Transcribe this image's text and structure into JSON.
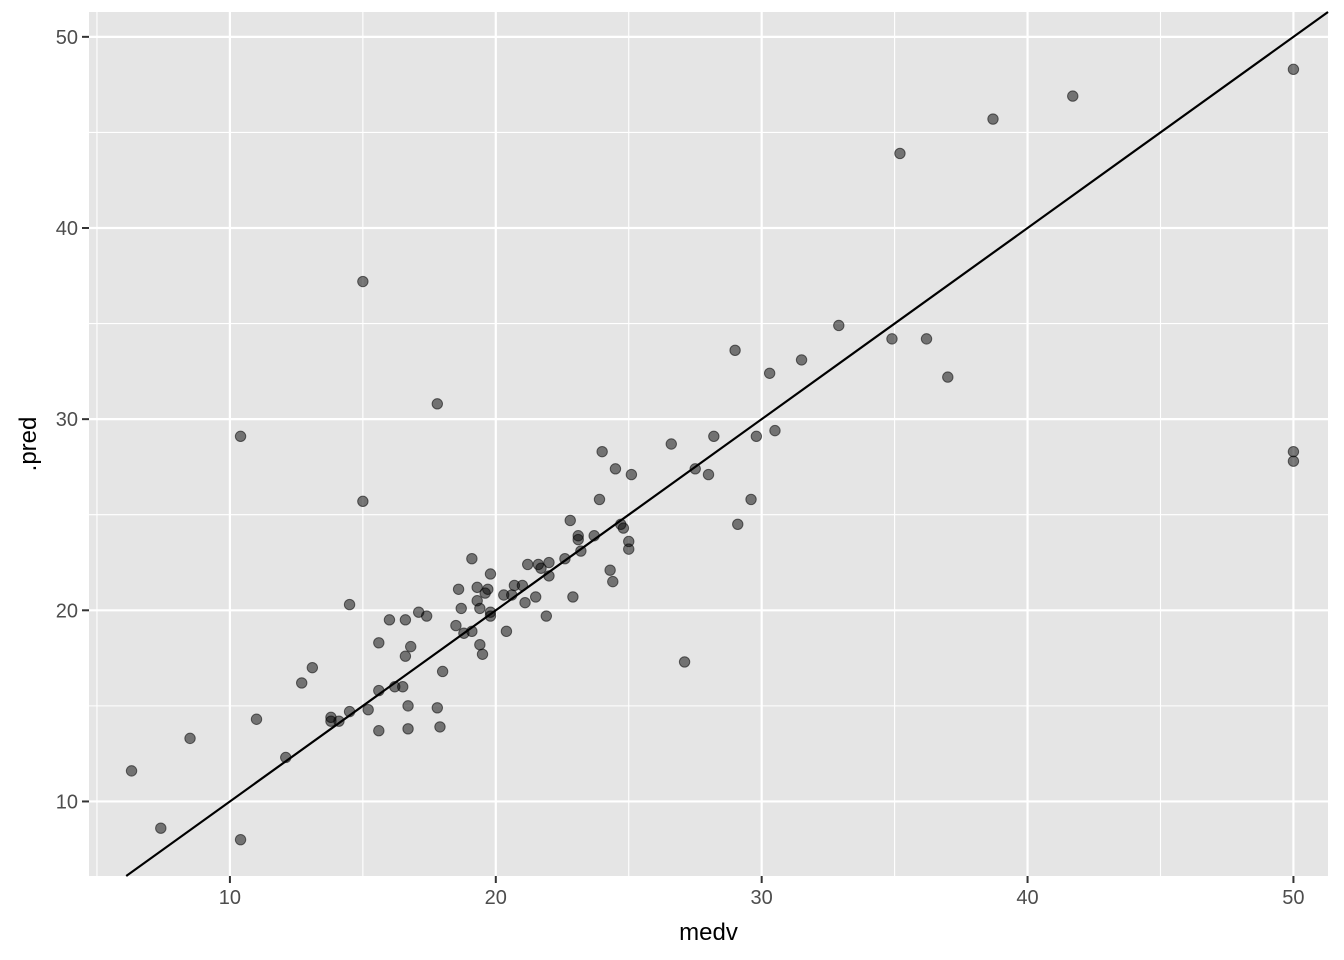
{
  "chart_data": {
    "type": "scatter",
    "title": "",
    "xlabel": "medv",
    "ylabel": ".pred",
    "xlim": [
      4.7,
      51.3
    ],
    "ylim": [
      6.1,
      51.3
    ],
    "x_ticks": [
      10,
      20,
      30,
      40,
      50
    ],
    "y_ticks": [
      10,
      20,
      30,
      40,
      50
    ],
    "x_tick_labels": [
      "10",
      "20",
      "30",
      "40",
      "50"
    ],
    "y_tick_labels": [
      "10",
      "20",
      "30",
      "40",
      "50"
    ],
    "grid": true,
    "reference_line": {
      "slope": 1,
      "intercept": 0,
      "color": "#000000"
    },
    "point_color": "#000000",
    "point_alpha": 0.5,
    "panel_background": "#e5e5e5",
    "grid_color": "#ffffff",
    "points": [
      [
        6.3,
        11.6
      ],
      [
        7.4,
        8.6
      ],
      [
        8.5,
        13.3
      ],
      [
        10.4,
        29.1
      ],
      [
        10.4,
        8.0
      ],
      [
        11.0,
        14.3
      ],
      [
        12.1,
        12.3
      ],
      [
        12.7,
        16.2
      ],
      [
        13.1,
        17.0
      ],
      [
        13.8,
        14.4
      ],
      [
        13.8,
        14.2
      ],
      [
        14.1,
        14.2
      ],
      [
        14.5,
        14.7
      ],
      [
        14.5,
        20.3
      ],
      [
        15.0,
        37.2
      ],
      [
        15.0,
        25.7
      ],
      [
        15.2,
        14.8
      ],
      [
        15.6,
        18.3
      ],
      [
        15.6,
        15.8
      ],
      [
        15.6,
        13.7
      ],
      [
        16.0,
        19.5
      ],
      [
        16.2,
        16.0
      ],
      [
        16.5,
        16.0
      ],
      [
        16.6,
        17.6
      ],
      [
        16.6,
        19.5
      ],
      [
        16.7,
        15.0
      ],
      [
        16.7,
        13.8
      ],
      [
        16.8,
        18.1
      ],
      [
        17.1,
        19.9
      ],
      [
        17.4,
        19.7
      ],
      [
        17.8,
        30.8
      ],
      [
        17.8,
        14.9
      ],
      [
        17.9,
        13.9
      ],
      [
        18.0,
        16.8
      ],
      [
        18.5,
        19.2
      ],
      [
        18.6,
        21.1
      ],
      [
        18.7,
        20.1
      ],
      [
        18.8,
        18.8
      ],
      [
        19.1,
        22.7
      ],
      [
        19.1,
        18.9
      ],
      [
        19.3,
        21.2
      ],
      [
        19.3,
        20.5
      ],
      [
        19.4,
        20.1
      ],
      [
        19.4,
        18.2
      ],
      [
        19.5,
        17.7
      ],
      [
        19.6,
        20.9
      ],
      [
        19.7,
        21.1
      ],
      [
        19.8,
        19.7
      ],
      [
        19.8,
        19.9
      ],
      [
        19.8,
        21.9
      ],
      [
        20.3,
        20.8
      ],
      [
        20.4,
        18.9
      ],
      [
        20.6,
        20.8
      ],
      [
        20.7,
        21.3
      ],
      [
        21.0,
        21.3
      ],
      [
        21.1,
        20.4
      ],
      [
        21.2,
        22.4
      ],
      [
        21.5,
        20.7
      ],
      [
        21.6,
        22.4
      ],
      [
        21.7,
        22.2
      ],
      [
        21.9,
        19.7
      ],
      [
        22.0,
        22.5
      ],
      [
        22.0,
        21.8
      ],
      [
        22.6,
        22.7
      ],
      [
        22.8,
        24.7
      ],
      [
        22.9,
        20.7
      ],
      [
        23.1,
        23.9
      ],
      [
        23.1,
        23.7
      ],
      [
        23.2,
        23.1
      ],
      [
        23.7,
        23.9
      ],
      [
        23.9,
        25.8
      ],
      [
        24.0,
        28.3
      ],
      [
        24.3,
        22.1
      ],
      [
        24.4,
        21.5
      ],
      [
        24.5,
        27.4
      ],
      [
        24.7,
        24.5
      ],
      [
        24.8,
        24.3
      ],
      [
        25.0,
        23.6
      ],
      [
        25.0,
        23.2
      ],
      [
        25.1,
        27.1
      ],
      [
        26.6,
        28.7
      ],
      [
        27.1,
        17.3
      ],
      [
        27.5,
        27.4
      ],
      [
        28.0,
        27.1
      ],
      [
        28.2,
        29.1
      ],
      [
        29.0,
        33.6
      ],
      [
        29.1,
        24.5
      ],
      [
        29.6,
        25.8
      ],
      [
        29.8,
        29.1
      ],
      [
        30.3,
        32.4
      ],
      [
        30.5,
        29.4
      ],
      [
        31.5,
        33.1
      ],
      [
        32.9,
        34.9
      ],
      [
        34.9,
        34.2
      ],
      [
        35.2,
        43.9
      ],
      [
        36.2,
        34.2
      ],
      [
        37.0,
        32.2
      ],
      [
        38.7,
        45.7
      ],
      [
        41.7,
        46.9
      ],
      [
        50.0,
        48.3
      ],
      [
        50.0,
        28.3
      ],
      [
        50.0,
        27.8
      ]
    ]
  }
}
